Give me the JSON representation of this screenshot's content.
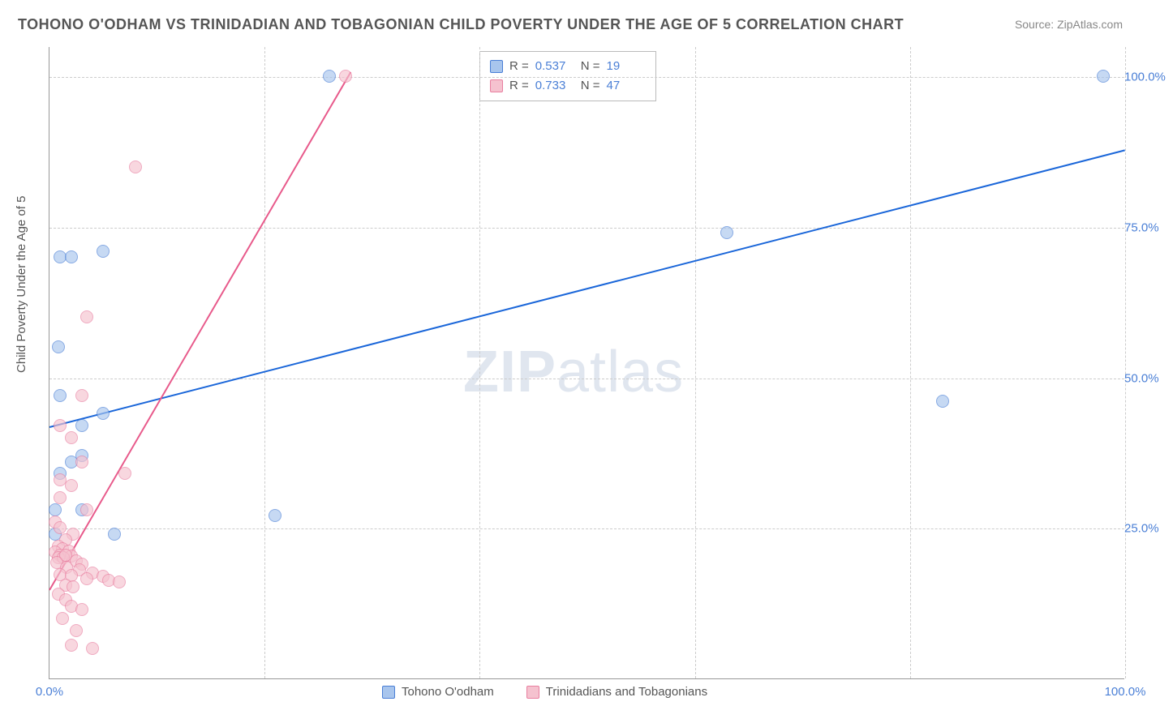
{
  "title": "TOHONO O'ODHAM VS TRINIDADIAN AND TOBAGONIAN CHILD POVERTY UNDER THE AGE OF 5 CORRELATION CHART",
  "source_label": "Source:",
  "source_name": "ZipAtlas.com",
  "y_axis_label": "Child Poverty Under the Age of 5",
  "watermark_bold": "ZIP",
  "watermark_light": "atlas",
  "chart": {
    "type": "scatter",
    "xlim": [
      0,
      100
    ],
    "ylim": [
      0,
      105
    ],
    "x_ticks": [
      {
        "v": 0,
        "label": "0.0%"
      },
      {
        "v": 100,
        "label": "100.0%"
      }
    ],
    "y_ticks": [
      {
        "v": 25,
        "label": "25.0%"
      },
      {
        "v": 50,
        "label": "50.0%"
      },
      {
        "v": 75,
        "label": "75.0%"
      },
      {
        "v": 100,
        "label": "100.0%"
      }
    ],
    "grid_h": [
      25,
      50,
      75,
      100
    ],
    "grid_v": [
      20,
      40,
      60,
      80,
      100
    ],
    "background_color": "#ffffff",
    "grid_color": "#cccccc",
    "axis_color": "#999999",
    "series": [
      {
        "name": "Tohono O'odham",
        "color_fill": "#a8c5ed",
        "color_stroke": "#4a7fd6",
        "R": "0.537",
        "N": "19",
        "trend": {
          "x1": 0,
          "y1": 42,
          "x2": 100,
          "y2": 88,
          "color": "#1a66d9"
        },
        "points": [
          {
            "x": 1,
            "y": 70
          },
          {
            "x": 2,
            "y": 70
          },
          {
            "x": 5,
            "y": 71
          },
          {
            "x": 0.8,
            "y": 55
          },
          {
            "x": 1,
            "y": 47
          },
          {
            "x": 5,
            "y": 44
          },
          {
            "x": 3,
            "y": 42
          },
          {
            "x": 1,
            "y": 34
          },
          {
            "x": 3,
            "y": 37
          },
          {
            "x": 0.5,
            "y": 28
          },
          {
            "x": 3,
            "y": 28
          },
          {
            "x": 0.5,
            "y": 24
          },
          {
            "x": 6,
            "y": 24
          },
          {
            "x": 21,
            "y": 27
          },
          {
            "x": 26,
            "y": 100
          },
          {
            "x": 63,
            "y": 74
          },
          {
            "x": 83,
            "y": 46
          },
          {
            "x": 98,
            "y": 100
          },
          {
            "x": 2,
            "y": 36
          }
        ]
      },
      {
        "name": "Trinidadians and Tobagonians",
        "color_fill": "#f5c2cf",
        "color_stroke": "#e97fa0",
        "R": "0.733",
        "N": "47",
        "trend": {
          "x1": 0,
          "y1": 15,
          "x2": 28,
          "y2": 101,
          "color": "#e85a8b"
        },
        "points": [
          {
            "x": 8,
            "y": 85
          },
          {
            "x": 3.5,
            "y": 60
          },
          {
            "x": 3,
            "y": 47
          },
          {
            "x": 1,
            "y": 42
          },
          {
            "x": 2,
            "y": 40
          },
          {
            "x": 3,
            "y": 36
          },
          {
            "x": 7,
            "y": 34
          },
          {
            "x": 1,
            "y": 33
          },
          {
            "x": 2,
            "y": 32
          },
          {
            "x": 1,
            "y": 30
          },
          {
            "x": 3.5,
            "y": 28
          },
          {
            "x": 0.5,
            "y": 26
          },
          {
            "x": 1,
            "y": 25
          },
          {
            "x": 2.2,
            "y": 24
          },
          {
            "x": 1.5,
            "y": 23
          },
          {
            "x": 0.8,
            "y": 22
          },
          {
            "x": 1.2,
            "y": 21.5
          },
          {
            "x": 1.8,
            "y": 21.2
          },
          {
            "x": 0.5,
            "y": 21
          },
          {
            "x": 1,
            "y": 20.5
          },
          {
            "x": 2,
            "y": 20.3
          },
          {
            "x": 0.8,
            "y": 20.1
          },
          {
            "x": 1.3,
            "y": 20
          },
          {
            "x": 1.5,
            "y": 20.4
          },
          {
            "x": 2.5,
            "y": 19.5
          },
          {
            "x": 3,
            "y": 19
          },
          {
            "x": 0.7,
            "y": 19.2
          },
          {
            "x": 1.6,
            "y": 18.5
          },
          {
            "x": 2.8,
            "y": 18
          },
          {
            "x": 4,
            "y": 17.5
          },
          {
            "x": 5,
            "y": 17
          },
          {
            "x": 1,
            "y": 17.2
          },
          {
            "x": 2,
            "y": 17.1
          },
          {
            "x": 3.5,
            "y": 16.5
          },
          {
            "x": 5.5,
            "y": 16.3
          },
          {
            "x": 6.5,
            "y": 16
          },
          {
            "x": 1.5,
            "y": 15.5
          },
          {
            "x": 2.2,
            "y": 15.2
          },
          {
            "x": 0.8,
            "y": 14
          },
          {
            "x": 1.5,
            "y": 13
          },
          {
            "x": 2,
            "y": 12
          },
          {
            "x": 3,
            "y": 11.5
          },
          {
            "x": 1.2,
            "y": 10
          },
          {
            "x": 2.5,
            "y": 8
          },
          {
            "x": 4,
            "y": 5
          },
          {
            "x": 2,
            "y": 5.5
          },
          {
            "x": 27.5,
            "y": 100
          }
        ]
      }
    ],
    "legend_bottom": [
      {
        "swatch": "blue",
        "label": "Tohono O'odham"
      },
      {
        "swatch": "pink",
        "label": "Trinidadians and Tobagonians"
      }
    ]
  }
}
